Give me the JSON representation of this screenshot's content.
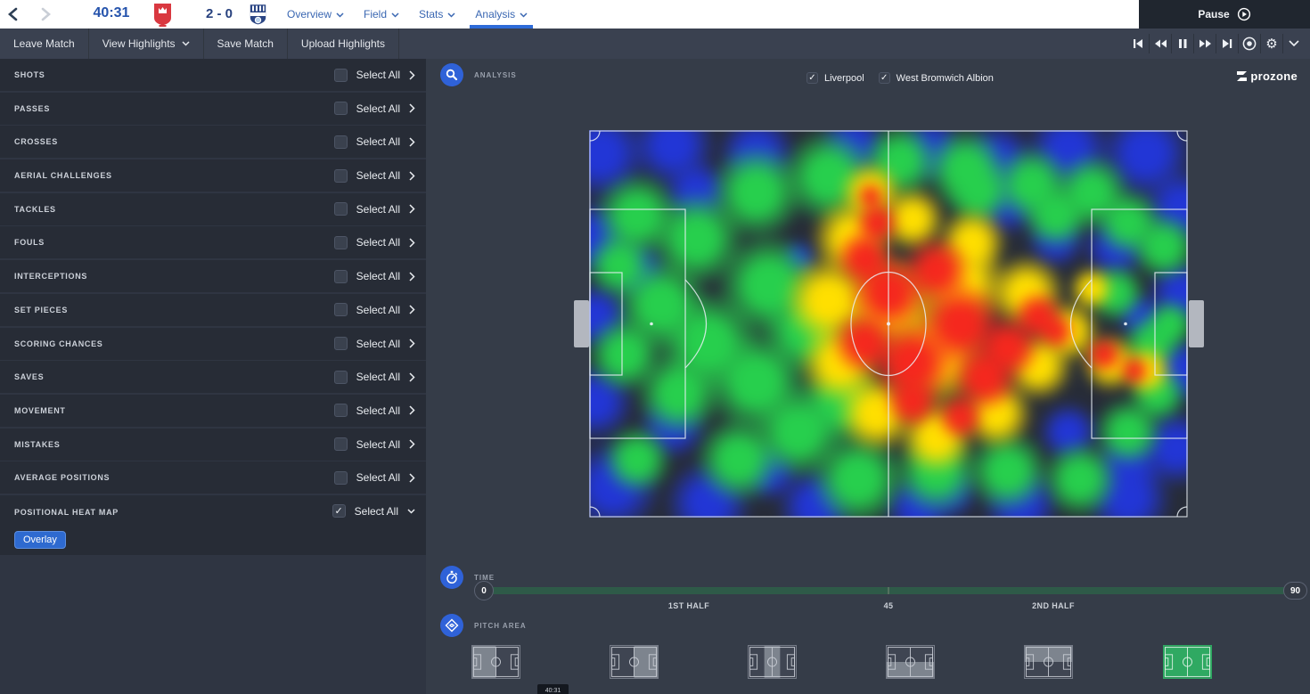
{
  "topbar": {
    "time": "40:31",
    "score": "2 - 0",
    "home_team": "Liverpool",
    "away_team": "West Bromwich Albion",
    "nav": [
      {
        "label": "Overview",
        "active": false
      },
      {
        "label": "Field",
        "active": false
      },
      {
        "label": "Stats",
        "active": false
      },
      {
        "label": "Analysis",
        "active": true
      }
    ],
    "pause_label": "Pause"
  },
  "toolbar": {
    "tabs": [
      {
        "label": "Leave Match",
        "dropdown": false
      },
      {
        "label": "View Highlights",
        "dropdown": true
      },
      {
        "label": "Save Match",
        "dropdown": false
      },
      {
        "label": "Upload Highlights",
        "dropdown": false
      }
    ],
    "playback": [
      "skip-start",
      "rewind",
      "pause",
      "fast-forward",
      "skip-end",
      "record",
      "settings",
      "collapse"
    ]
  },
  "sidebar": {
    "select_all_label": "Select All",
    "overlay_button": "Overlay",
    "categories": [
      {
        "label": "SHOTS",
        "checked": false,
        "expanded": false
      },
      {
        "label": "PASSES",
        "checked": false,
        "expanded": false
      },
      {
        "label": "CROSSES",
        "checked": false,
        "expanded": false
      },
      {
        "label": "AERIAL CHALLENGES",
        "checked": false,
        "expanded": false
      },
      {
        "label": "TACKLES",
        "checked": false,
        "expanded": false
      },
      {
        "label": "FOULS",
        "checked": false,
        "expanded": false
      },
      {
        "label": "INTERCEPTIONS",
        "checked": false,
        "expanded": false
      },
      {
        "label": "SET PIECES",
        "checked": false,
        "expanded": false
      },
      {
        "label": "SCORING CHANCES",
        "checked": false,
        "expanded": false
      },
      {
        "label": "SAVES",
        "checked": false,
        "expanded": false
      },
      {
        "label": "MOVEMENT",
        "checked": false,
        "expanded": false
      },
      {
        "label": "MISTAKES",
        "checked": false,
        "expanded": false
      },
      {
        "label": "AVERAGE POSITIONS",
        "checked": false,
        "expanded": false
      },
      {
        "label": "POSITIONAL HEAT MAP",
        "checked": true,
        "expanded": true
      }
    ]
  },
  "analysis": {
    "title": "ANALYSIS",
    "teams": [
      {
        "name": "Liverpool",
        "checked": true
      },
      {
        "name": "West Bromwich Albion",
        "checked": true
      }
    ],
    "brand": "prozone"
  },
  "time_section": {
    "label": "TIME",
    "min": "0",
    "max": "90",
    "markers": [
      "1ST HALF",
      "45",
      "2ND HALF"
    ],
    "tooltip": "40:31"
  },
  "pitch_area_section": {
    "label": "PITCH AREA",
    "options": [
      {
        "name": "left-half",
        "selected": false
      },
      {
        "name": "right-half",
        "selected": false
      },
      {
        "name": "middle-third",
        "selected": false
      },
      {
        "name": "bottom-half",
        "selected": false
      },
      {
        "name": "top-half",
        "selected": false
      },
      {
        "name": "full-pitch",
        "selected": true
      }
    ]
  },
  "heatmap": {
    "description": "Positional heat map for both teams, hottest zone centre-right of midfield extending toward right penalty area",
    "palette": {
      "b": "#2236d6",
      "g": "#27cf4d",
      "y": "#ffdf00",
      "r": "#f5281e"
    },
    "blobs": [
      [
        "b",
        2,
        6,
        55
      ],
      [
        "b",
        14,
        4,
        50
      ],
      [
        "b",
        28,
        6,
        45
      ],
      [
        "b",
        44,
        4,
        40
      ],
      [
        "b",
        57,
        5,
        40
      ],
      [
        "b",
        68,
        8,
        45
      ],
      [
        "b",
        80,
        5,
        50
      ],
      [
        "b",
        93,
        6,
        55
      ],
      [
        "b",
        99,
        20,
        45
      ],
      [
        "b",
        99,
        42,
        40
      ],
      [
        "b",
        99,
        62,
        40
      ],
      [
        "b",
        98,
        82,
        45
      ],
      [
        "b",
        90,
        95,
        50
      ],
      [
        "b",
        72,
        96,
        45
      ],
      [
        "b",
        55,
        97,
        40
      ],
      [
        "b",
        38,
        97,
        45
      ],
      [
        "b",
        20,
        96,
        50
      ],
      [
        "b",
        4,
        92,
        55
      ],
      [
        "b",
        1,
        70,
        45
      ],
      [
        "b",
        1,
        48,
        40
      ],
      [
        "b",
        1,
        28,
        45
      ],
      [
        "b",
        18,
        16,
        40
      ],
      [
        "b",
        8,
        36,
        35
      ],
      [
        "b",
        14,
        76,
        40
      ],
      [
        "b",
        30,
        88,
        35
      ],
      [
        "b",
        70,
        18,
        42
      ],
      [
        "b",
        78,
        28,
        35
      ],
      [
        "b",
        88,
        30,
        38
      ],
      [
        "b",
        92,
        48,
        28
      ],
      [
        "b",
        80,
        78,
        35
      ],
      [
        "b",
        90,
        86,
        40
      ],
      [
        "b",
        60,
        93,
        35
      ],
      [
        "b",
        35,
        33,
        22
      ],
      [
        "g",
        8,
        22,
        50
      ],
      [
        "g",
        18,
        28,
        55
      ],
      [
        "g",
        28,
        16,
        55
      ],
      [
        "g",
        40,
        12,
        55
      ],
      [
        "g",
        52,
        8,
        45
      ],
      [
        "g",
        63,
        10,
        48
      ],
      [
        "g",
        74,
        14,
        45
      ],
      [
        "g",
        84,
        16,
        45
      ],
      [
        "g",
        12,
        45,
        55
      ],
      [
        "g",
        6,
        58,
        45
      ],
      [
        "g",
        20,
        55,
        60
      ],
      [
        "g",
        30,
        40,
        60
      ],
      [
        "g",
        28,
        65,
        60
      ],
      [
        "g",
        15,
        68,
        50
      ],
      [
        "g",
        35,
        78,
        55
      ],
      [
        "g",
        25,
        85,
        50
      ],
      [
        "g",
        45,
        90,
        55
      ],
      [
        "g",
        58,
        88,
        50
      ],
      [
        "g",
        70,
        88,
        48
      ],
      [
        "g",
        82,
        90,
        45
      ],
      [
        "g",
        90,
        78,
        40
      ],
      [
        "g",
        95,
        68,
        35
      ],
      [
        "g",
        96,
        30,
        40
      ],
      [
        "g",
        90,
        24,
        40
      ],
      [
        "g",
        8,
        85,
        40
      ],
      [
        "g",
        5,
        35,
        40
      ],
      [
        "g",
        36,
        52,
        50
      ],
      [
        "g",
        42,
        70,
        50
      ],
      [
        "g",
        88,
        42,
        35
      ],
      [
        "g",
        94,
        55,
        35
      ],
      [
        "g",
        78,
        22,
        40
      ],
      [
        "g",
        65,
        16,
        40
      ],
      [
        "g",
        97,
        50,
        30
      ],
      [
        "y",
        47,
        16,
        36
      ],
      [
        "y",
        44,
        28,
        48
      ],
      [
        "y",
        40,
        44,
        52
      ],
      [
        "y",
        42,
        60,
        48
      ],
      [
        "y",
        48,
        73,
        46
      ],
      [
        "y",
        58,
        79,
        44
      ],
      [
        "y",
        68,
        73,
        42
      ],
      [
        "y",
        75,
        61,
        40
      ],
      [
        "y",
        73,
        42,
        44
      ],
      [
        "y",
        64,
        29,
        40
      ],
      [
        "y",
        54,
        23,
        38
      ],
      [
        "y",
        50,
        45,
        60
      ],
      [
        "y",
        58,
        58,
        62
      ],
      [
        "y",
        80,
        52,
        36
      ],
      [
        "y",
        87,
        60,
        34
      ],
      [
        "y",
        93,
        62,
        30
      ],
      [
        "y",
        62,
        40,
        55
      ],
      [
        "y",
        84,
        41,
        26
      ],
      [
        "r",
        47,
        17,
        16
      ],
      [
        "r",
        48,
        24,
        26
      ],
      [
        "r",
        46,
        33,
        34
      ],
      [
        "r",
        50,
        42,
        46
      ],
      [
        "r",
        46,
        55,
        38
      ],
      [
        "r",
        54,
        60,
        50
      ],
      [
        "r",
        62,
        50,
        50
      ],
      [
        "r",
        58,
        36,
        40
      ],
      [
        "r",
        66,
        64,
        40
      ],
      [
        "r",
        62,
        74,
        28
      ],
      [
        "r",
        70,
        56,
        38
      ],
      [
        "r",
        75,
        48,
        30
      ],
      [
        "r",
        54,
        70,
        32
      ],
      [
        "r",
        86,
        58,
        22
      ],
      [
        "r",
        91,
        62,
        18
      ],
      [
        "r",
        78,
        52,
        22
      ]
    ]
  }
}
